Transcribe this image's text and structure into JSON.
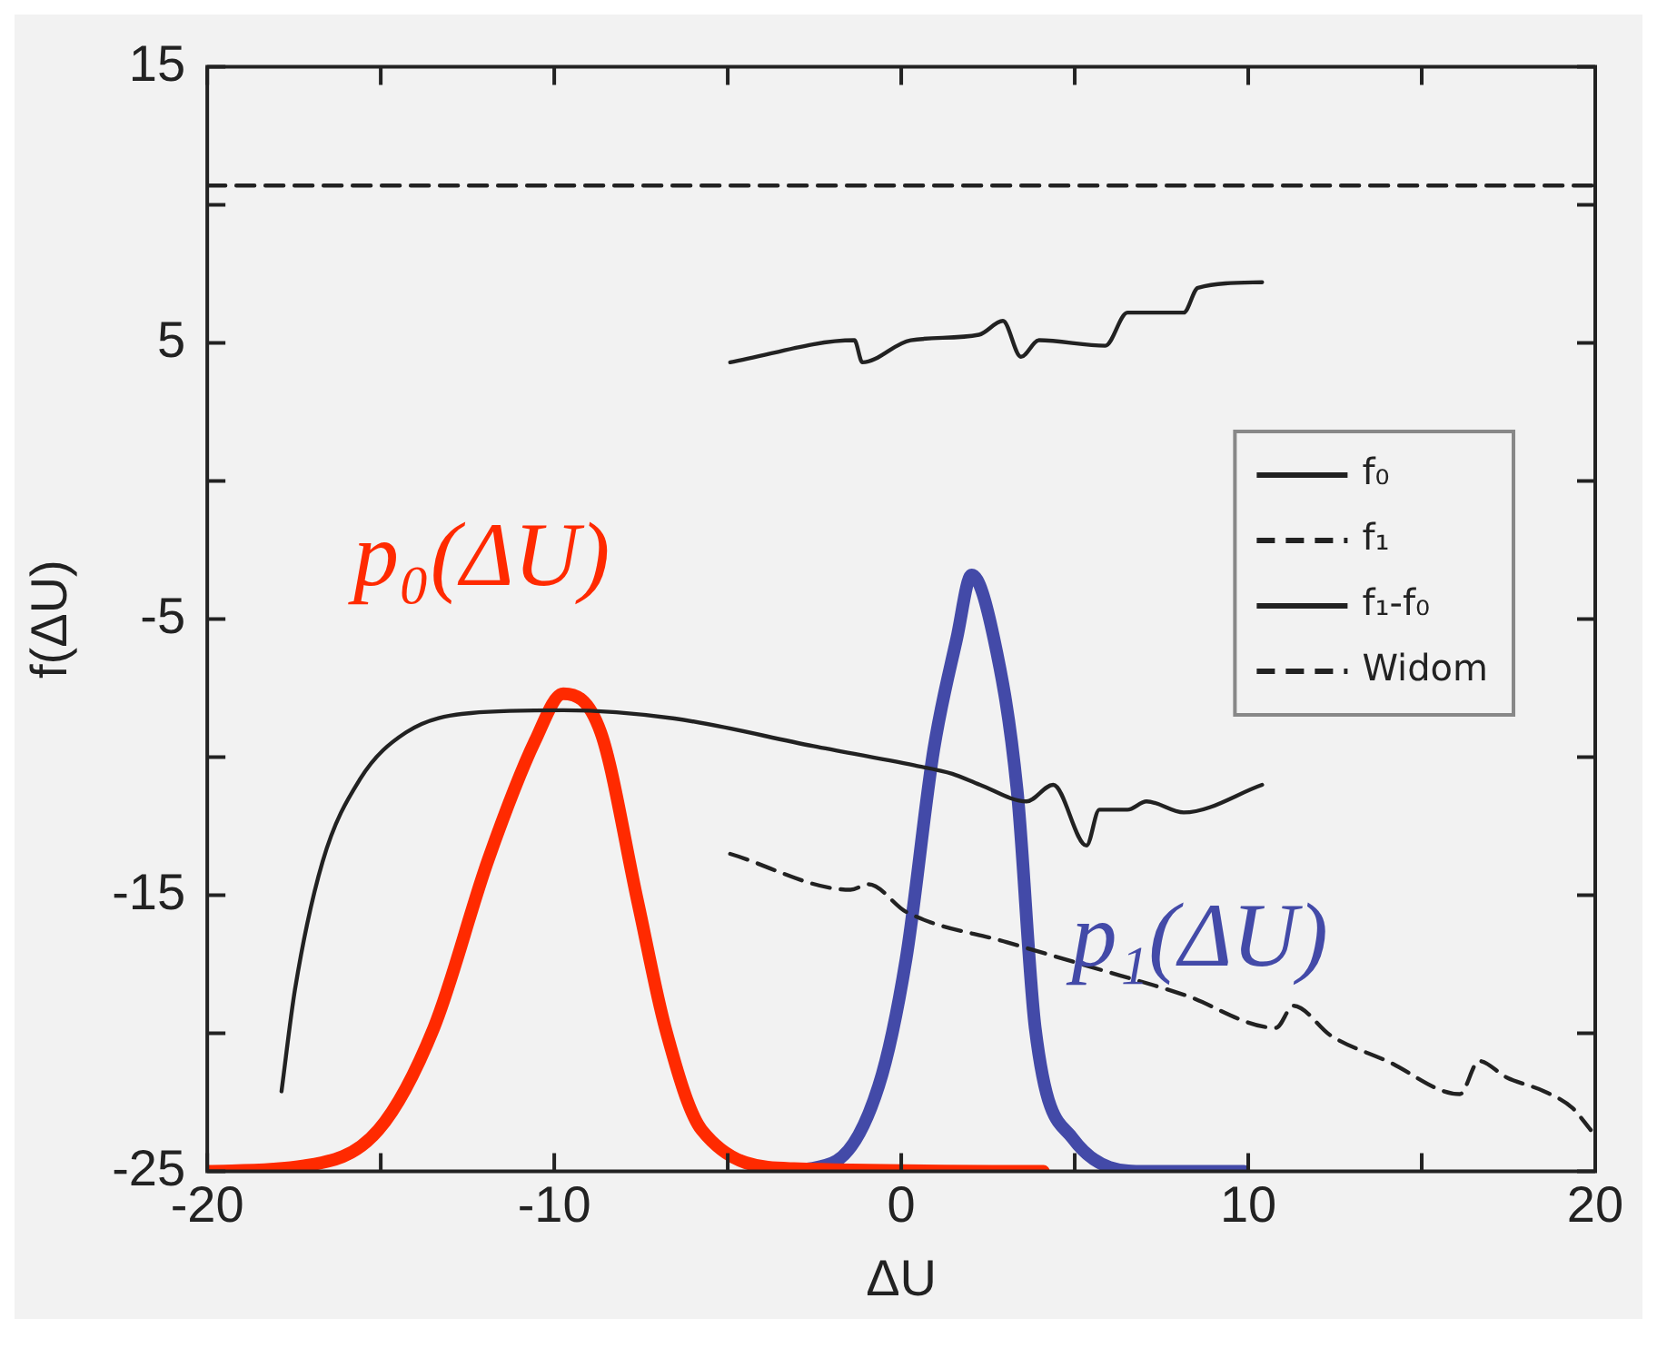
{
  "chart_data": {
    "type": "line",
    "xlabel": "ΔU",
    "ylabel": "f(ΔU)",
    "xlim": [
      -20,
      20
    ],
    "xticks": [
      -20,
      {
        "value": -15,
        "label": null
      },
      -10,
      {
        "value": -5,
        "label": null
      },
      0,
      {
        "value": 5,
        "label": null
      },
      10,
      {
        "value": 15,
        "label": null
      },
      20
    ],
    "ylim": [
      -25,
      15
    ],
    "yticks": [
      -25,
      {
        "value": -20,
        "label": null
      },
      -15,
      {
        "value": -10,
        "label": null
      },
      -5,
      {
        "value": 0,
        "label": null
      },
      5,
      {
        "value": 10,
        "label": null
      },
      15
    ],
    "grid": false,
    "legend": "right",
    "marker": "none",
    "series": [
      {
        "name": "f₀",
        "color": "#222222",
        "line_style": "solid",
        "x": [
          -17.86,
          -17.47,
          -16.68,
          -15.6,
          -14.27,
          -12.4,
          -9.74,
          -6.53,
          -2.53,
          0.39,
          1.47,
          2.27,
          3.61,
          4.38,
          5.34,
          5.71,
          6.52,
          7.07,
          8.14,
          10.4
        ],
        "values": [
          -22.1,
          -18.4,
          -13.8,
          -10.8,
          -9.1,
          -8.4,
          -8.3,
          -8.6,
          -9.6,
          -10.3,
          -10.6,
          -11.0,
          -11.6,
          -11.0,
          -13.2,
          -11.9,
          -11.9,
          -11.6,
          -12.0,
          -11.0
        ]
      },
      {
        "name": "f₁",
        "color": "#222222",
        "line_style": "dashed",
        "x": [
          -4.93,
          -1.46,
          -0.94,
          0.14,
          3.05,
          5.48,
          8.14,
          10.8,
          11.3,
          12.4,
          14.0,
          16.1,
          16.65,
          17.45,
          18.53,
          19.34,
          19.87
        ],
        "values": [
          -13.5,
          -14.8,
          -14.6,
          -15.6,
          -16.7,
          -17.6,
          -18.6,
          -19.8,
          -19.0,
          -20.1,
          -21.0,
          -22.2,
          -21.0,
          -21.6,
          -22.1,
          -22.7,
          -23.5
        ]
      },
      {
        "name": "f₁-f₀",
        "color": "#222222",
        "line_style": "solid",
        "x": [
          -4.93,
          -1.35,
          -1.12,
          0.27,
          2.24,
          2.93,
          3.45,
          3.97,
          5.88,
          6.52,
          8.14,
          8.55,
          10.4
        ],
        "values": [
          4.3,
          5.1,
          4.3,
          5.1,
          5.3,
          5.8,
          4.5,
          5.1,
          4.9,
          6.1,
          6.1,
          7.0,
          7.2
        ]
      },
      {
        "name": "Widom",
        "color": "#222222",
        "line_style": "dashed",
        "x": [
          -20,
          20
        ],
        "values": [
          10.7,
          10.7
        ]
      },
      {
        "name": "p₀(ΔU)",
        "color": "#ff2a00",
        "line_style": "solid",
        "x": [
          -20,
          -17.2,
          -15.07,
          -13.47,
          -11.9,
          -10.55,
          -9.74,
          -8.66,
          -7.6,
          -6.8,
          -5.75,
          -3.1,
          4.1
        ],
        "values": [
          -25,
          -24.8,
          -23.5,
          -19.8,
          -13.7,
          -9.4,
          -7.7,
          -9.1,
          -15.2,
          -19.8,
          -23.5,
          -24.9,
          -25
        ]
      },
      {
        "name": "p₁(ΔU)",
        "color": "#434aa8",
        "line_style": "solid",
        "x": [
          -3.87,
          -2.0,
          -0.65,
          0.14,
          0.94,
          1.6,
          2.03,
          2.67,
          3.34,
          3.86,
          4.94,
          7.07,
          9.88
        ],
        "values": [
          -25,
          -24.7,
          -21.9,
          -17.3,
          -9.7,
          -5.7,
          -3.4,
          -5.7,
          -11.2,
          -19.8,
          -23.8,
          -25,
          -25
        ]
      }
    ]
  }
}
